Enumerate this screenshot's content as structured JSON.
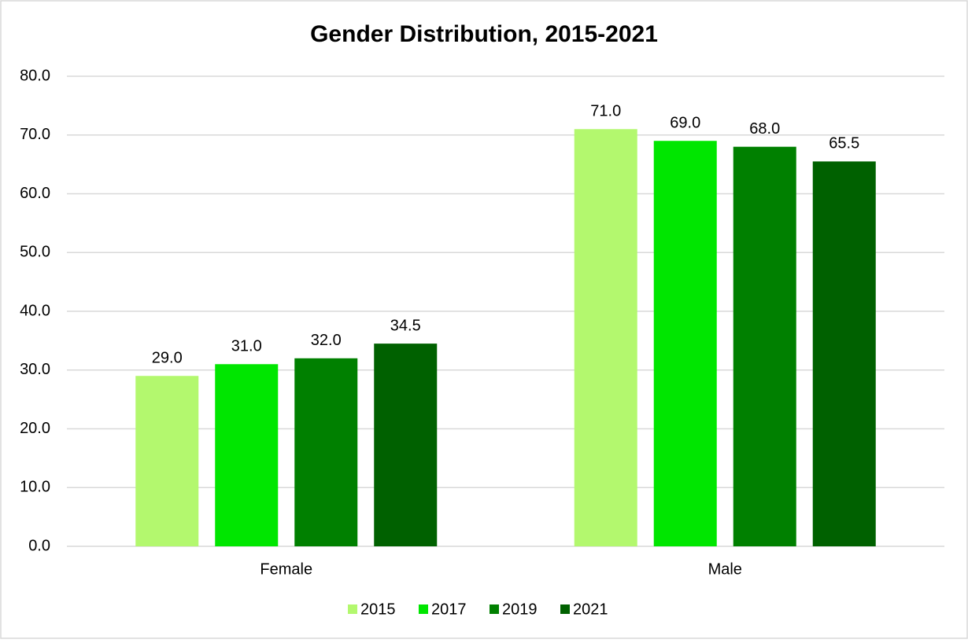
{
  "chart_data": {
    "type": "bar",
    "title": "Gender Distribution, 2015-2021",
    "categories": [
      "Female",
      "Male"
    ],
    "series": [
      {
        "name": "2015",
        "color": "#b3f86e",
        "values": [
          29,
          71
        ],
        "value_labels": [
          "29.0",
          "71.0"
        ]
      },
      {
        "name": "2017",
        "color": "#00e600",
        "values": [
          31,
          69
        ],
        "value_labels": [
          "31.0",
          "69.0"
        ]
      },
      {
        "name": "2019",
        "color": "#008000",
        "values": [
          32,
          68
        ],
        "value_labels": [
          "32.0",
          "68.0"
        ]
      },
      {
        "name": "2021",
        "color": "#006100",
        "values": [
          34.5,
          65.5
        ],
        "value_labels": [
          "34.5",
          "65.5"
        ]
      }
    ],
    "ylim": [
      0,
      80
    ],
    "yticks": [
      {
        "value": 0,
        "label": "0.0"
      },
      {
        "value": 10,
        "label": "10.0"
      },
      {
        "value": 20,
        "label": "20.0"
      },
      {
        "value": 30,
        "label": "30.0"
      },
      {
        "value": 40,
        "label": "40.0"
      },
      {
        "value": 50,
        "label": "50.0"
      },
      {
        "value": 60,
        "label": "60.0"
      },
      {
        "value": 70,
        "label": "70.0"
      },
      {
        "value": 80,
        "label": "80.0"
      }
    ],
    "grid": true,
    "legend": "bottom"
  }
}
